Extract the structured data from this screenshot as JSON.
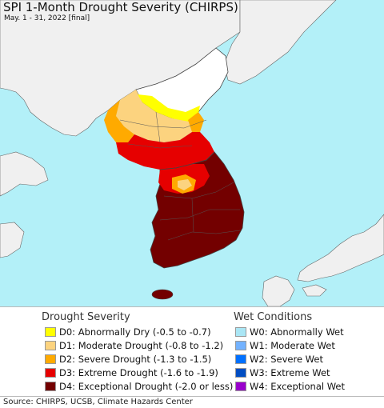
{
  "title": "SPI 1-Month Drought Severity (CHIRPS)",
  "subtitle": "May. 1 - 31, 2022 [final]",
  "colors": {
    "water": "#b3f0f8",
    "land_outside": "#f0f0f0",
    "no_drought": "#ffffff",
    "border": "#444444"
  },
  "legend": {
    "drought_heading": "Drought Severity",
    "wet_heading": "Wet Conditions",
    "drought_items": [
      {
        "label": "D0: Abnormally Dry (-0.5 to -0.7)",
        "color": "#ffff00"
      },
      {
        "label": "D1: Moderate Drought (-0.8 to -1.2)",
        "color": "#fcd37f"
      },
      {
        "label": "D2: Severe Drought (-1.3 to -1.5)",
        "color": "#ffaa00"
      },
      {
        "label": "D3: Extreme Drought (-1.6 to -1.9)",
        "color": "#e60000"
      },
      {
        "label": "D4: Exceptional Drought (-2.0 or less)",
        "color": "#730000"
      }
    ],
    "wet_items": [
      {
        "label": "W0: Abnormally Wet",
        "color": "#aae6f5"
      },
      {
        "label": "W1: Moderate Wet",
        "color": "#73b2ff"
      },
      {
        "label": "W2: Severe Wet",
        "color": "#0070ff"
      },
      {
        "label": "W3: Extreme Wet",
        "color": "#004dc2"
      },
      {
        "label": "W4: Exceptional Wet",
        "color": "#9900cc"
      }
    ]
  },
  "source": "Source: CHIRPS, UCSB, Climate Hazards Center"
}
